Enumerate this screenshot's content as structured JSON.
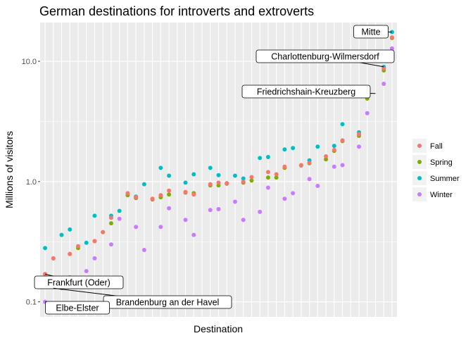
{
  "chart_data": {
    "type": "scatter",
    "title": "German destinations for introverts and extroverts",
    "xlabel": "Destination",
    "ylabel": "Millions of visitors",
    "yscale": "log10",
    "ylim": [
      0.075,
      21
    ],
    "yticks": [
      0.1,
      1.0,
      10.0
    ],
    "ytick_labels": [
      "0.1",
      "1.0",
      "10.0"
    ],
    "grid": true,
    "legend_position": "right",
    "n_destinations": 43,
    "series": [
      {
        "name": "Fall",
        "color": "#F8766D",
        "values": [
          0.17,
          0.23,
          0.25,
          0.29,
          0.32,
          0.38,
          0.5,
          0.8,
          0.74,
          0.72,
          0.77,
          0.84,
          0.82,
          0.78,
          0.95,
          0.98,
          0.97,
          1.0,
          1.09,
          1.2,
          1.15,
          1.33,
          1.37,
          1.43,
          1.62,
          1.83,
          2.2,
          2.48,
          5.1,
          8.7,
          15.8
        ]
      },
      {
        "name": "Spring",
        "color": "#7CAE00",
        "values": [
          0.17,
          0.23,
          0.25,
          0.28,
          0.32,
          0.38,
          0.45,
          0.77,
          0.73,
          0.71,
          0.74,
          0.78,
          0.81,
          0.8,
          0.93,
          0.93,
          0.96,
          0.98,
          1.02,
          1.08,
          1.08,
          1.3,
          1.36,
          1.42,
          1.53,
          1.8,
          2.17,
          2.4,
          4.9,
          8.4,
          15.6
        ]
      },
      {
        "name": "Summer",
        "color": "#00BFC4",
        "values": [
          0.28,
          0.36,
          0.4,
          0.31,
          0.52,
          0.52,
          0.57,
          0.75,
          0.95,
          1.3,
          1.12,
          0.98,
          1.15,
          1.3,
          1.13,
          1.12,
          1.06,
          1.57,
          1.6,
          1.85,
          1.9,
          1.5,
          1.95,
          1.98,
          3.0,
          2.57,
          5.4,
          9.0,
          17.5
        ]
      },
      {
        "name": "Winter",
        "color": "#C77CFF",
        "values": [
          0.1,
          0.13,
          0.16,
          0.18,
          0.23,
          0.3,
          0.49,
          0.42,
          0.27,
          0.42,
          0.6,
          0.48,
          0.36,
          0.58,
          0.59,
          0.68,
          0.48,
          0.56,
          0.89,
          0.72,
          0.8,
          1.05,
          0.92,
          1.33,
          1.37,
          1.95,
          3.7,
          6.5,
          12.8
        ]
      }
    ],
    "annotations": [
      "Mitte",
      "Charlottenburg-Wilmersdorf",
      "Friedrichshain-Kreuzberg",
      "Frankfurt (Oder)",
      "Brandenburg an der Havel",
      "Elbe-Elster"
    ]
  }
}
